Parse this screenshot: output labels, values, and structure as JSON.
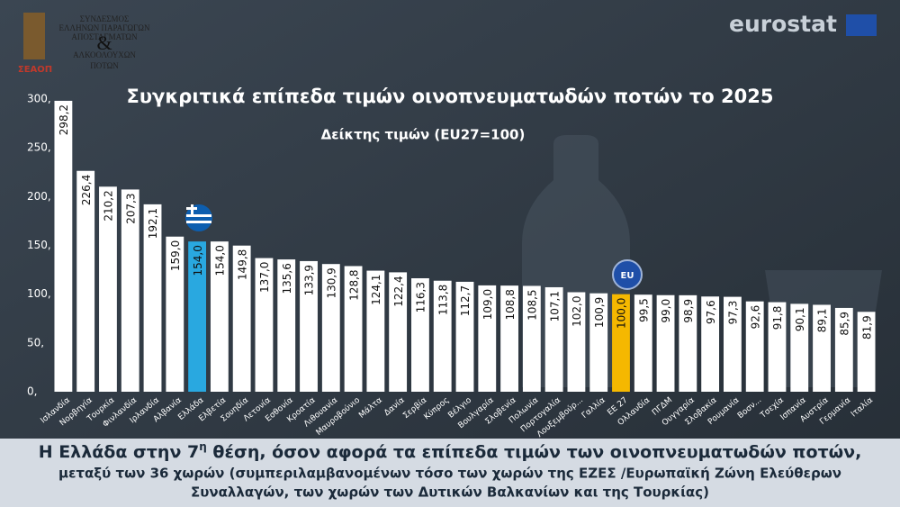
{
  "header": {
    "org_lines": [
      "ΣΥΝΔΕΣΜΟΣ",
      "ΕΛΛΗΝΩΝ ΠΑΡΑΓΩΓΩΝ",
      "ΑΠΟΣΤΑΓΜΑΤΩΝ",
      "ΑΛΚΟΟΛΟΥΧΩΝ",
      "ΠΟΤΩΝ"
    ],
    "org_amp": "&",
    "org_short": "ΣΕΑΟΠ",
    "source": "eurostat"
  },
  "chart_data": {
    "type": "bar",
    "title": "Συγκριτικά επίπεδα τιμών οινοπνευματωδών ποτών το 2025",
    "subtitle": "Δείκτης τιμών (EU27=100)",
    "categories": [
      "Ισλανδία",
      "Νορβηγία",
      "Τουρκία",
      "Φινλανδία",
      "Ιρλανδία",
      "Αλβανία",
      "Ελλάδα",
      "Ελβετία",
      "Σουηδία",
      "Λετονία",
      "Εσθονία",
      "Κροατία",
      "Λιθουανία",
      "Μαυροβούνιο",
      "Μάλτα",
      "Δανία",
      "Σερβία",
      "Κύπρος",
      "Βέλγιο",
      "Βουλγαρία",
      "Σλοβενία",
      "Πολωνία",
      "Πορτογαλία",
      "Λουξεμβούρ...",
      "Γαλλία",
      "ΕΕ 27",
      "Ολλανδία",
      "ΠΓΔΜ",
      "Ουγγαρία",
      "Σλοβακία",
      "Ρουμανία",
      "Βοσν...",
      "Τσεχία",
      "Ισπανία",
      "Αυστρία",
      "Γερμανία",
      "Ιταλία"
    ],
    "values": [
      298.2,
      226.4,
      210.2,
      207.3,
      192.1,
      159.0,
      154.0,
      154.0,
      149.8,
      137.0,
      135.6,
      133.9,
      130.9,
      128.8,
      124.1,
      122.4,
      116.3,
      113.8,
      112.7,
      109.0,
      108.8,
      108.5,
      107.1,
      102.0,
      100.9,
      100.0,
      99.5,
      99.0,
      98.9,
      97.6,
      97.3,
      92.6,
      91.8,
      90.1,
      89.1,
      85.9,
      81.9
    ],
    "value_labels": [
      "298,2",
      "226,4",
      "210,2",
      "207,3",
      "192,1",
      "159,0",
      "154,0",
      "154,0",
      "149,8",
      "137,0",
      "135,6",
      "133,9",
      "130,9",
      "128,8",
      "124,1",
      "122,4",
      "116,3",
      "113,8",
      "112,7",
      "109,0",
      "108,8",
      "108,5",
      "107,1",
      "102,0",
      "100,9",
      "100,0",
      "99,5",
      "99,0",
      "98,9",
      "97,6",
      "97,3",
      "92,6",
      "91,8",
      "90,1",
      "89,1",
      "85,9",
      "81,9"
    ],
    "color": "#ffffff",
    "highlights": [
      {
        "index": 6,
        "color": "#29a8e0"
      },
      {
        "index": 25,
        "color": "#f5b800"
      }
    ],
    "badge": "EU",
    "ylim": [
      0,
      300
    ],
    "yticks": [
      {
        "value": 0,
        "label": "0,"
      },
      {
        "value": 50,
        "label": "50,"
      },
      {
        "value": 100,
        "label": "100,"
      },
      {
        "value": 150,
        "label": "150,"
      },
      {
        "value": 200,
        "label": "200,"
      },
      {
        "value": 250,
        "label": "250,"
      },
      {
        "value": 300,
        "label": "300,"
      }
    ]
  },
  "footer": {
    "line1_a": "Η Ελλάδα στην 7",
    "line1_sup": "η",
    "line1_b": " θέση, όσον αφορά τα επίπεδα τιμών των οινοπνευματωδών ποτών,",
    "line2": "μεταξύ των 36 χωρών (συμπεριλαμβανομένων τόσο των χωρών της ΕΖΕΣ /Ευρωπαϊκή Ζώνη Ελεύθερων",
    "line3": "Συναλλαγών, των χωρών των Δυτικών Βαλκανίων και της Τουρκίας)"
  }
}
